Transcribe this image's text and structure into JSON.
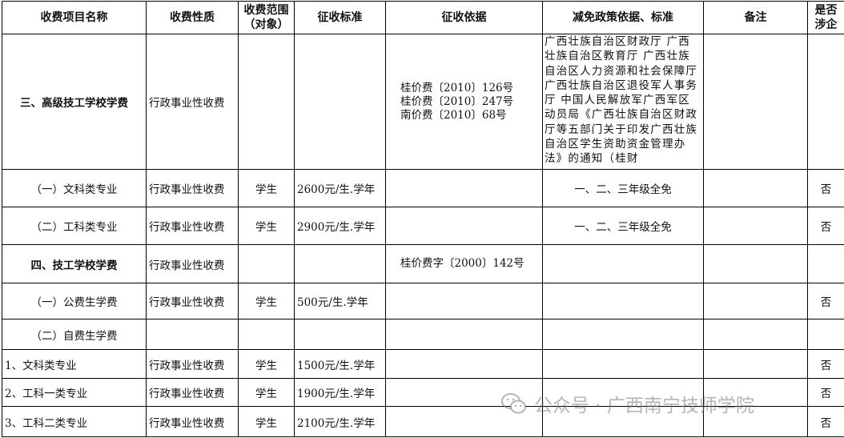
{
  "headers": [
    "收费项目名称",
    "收费性质",
    "收费范围（对象）",
    "征收标准",
    "征收依据",
    "减免政策依据、标准",
    "备注",
    "是否涉企"
  ],
  "rows": [
    {
      "name": "三、高级技工学校学费",
      "nature": "行政事业性收费",
      "scope": "",
      "standard": "",
      "basis": [
        "桂价费〔2010〕126号",
        "桂价费〔2010〕247号",
        "南价费〔2010〕68号"
      ],
      "policy": "广西壮族自治区财政厅 广西壮族自治区教育厅 广西壮族自治区人力资源和社会保障厅 广西壮族自治区退役军人事务厅 中国人民解放军广西军区动员局《广西壮族自治区财政厅等五部门关于印发广西壮族自治区学生资助资金管理办法》的通知（桂财",
      "note": "",
      "enterprise": ""
    },
    {
      "name": "（一）文科类专业",
      "nature": "行政事业性收费",
      "scope": "学生",
      "standard": "2600元/生.学年",
      "basis": [],
      "policy": "一、二、三年级全免",
      "note": "",
      "enterprise": "否"
    },
    {
      "name": "（二）工科类专业",
      "nature": "行政事业性收费",
      "scope": "学生",
      "standard": "2900元/生.学年",
      "basis": [],
      "policy": "一、二、三年级全免",
      "note": "",
      "enterprise": "否"
    },
    {
      "name": "四、技工学校学费",
      "nature": "行政事业性收费",
      "scope": "",
      "standard": "",
      "basis": [
        "桂价费字〔2000〕142号"
      ],
      "policy": "",
      "note": "",
      "enterprise": ""
    },
    {
      "name": "（一）公费生学费",
      "nature": "行政事业性收费",
      "scope": "学生",
      "standard": "500元/生.学年",
      "basis": [],
      "policy": "",
      "note": "",
      "enterprise": "否"
    },
    {
      "name": "（二）自费生学费",
      "nature": "",
      "scope": "",
      "standard": "",
      "basis": [],
      "policy": "",
      "note": "",
      "enterprise": ""
    },
    {
      "name": "1、文科类专业",
      "nature": "行政事业性收费",
      "scope": "学生",
      "standard": "1500元/生.学年",
      "basis": [],
      "policy": "",
      "note": "",
      "enterprise": "否"
    },
    {
      "name": "2、工科一类专业",
      "nature": "行政事业性收费",
      "scope": "学生",
      "standard": "1900元/生.学年",
      "basis": [],
      "policy": "",
      "note": "",
      "enterprise": "否"
    },
    {
      "name": "3、工科二类专业",
      "nature": "行政事业性收费",
      "scope": "学生",
      "standard": "2100元/生.学年",
      "basis": [],
      "policy": "",
      "note": "",
      "enterprise": "否"
    }
  ],
  "watermark": {
    "icon": "wechat-icon",
    "text": "公众号 · 广西南宁技师学院"
  }
}
